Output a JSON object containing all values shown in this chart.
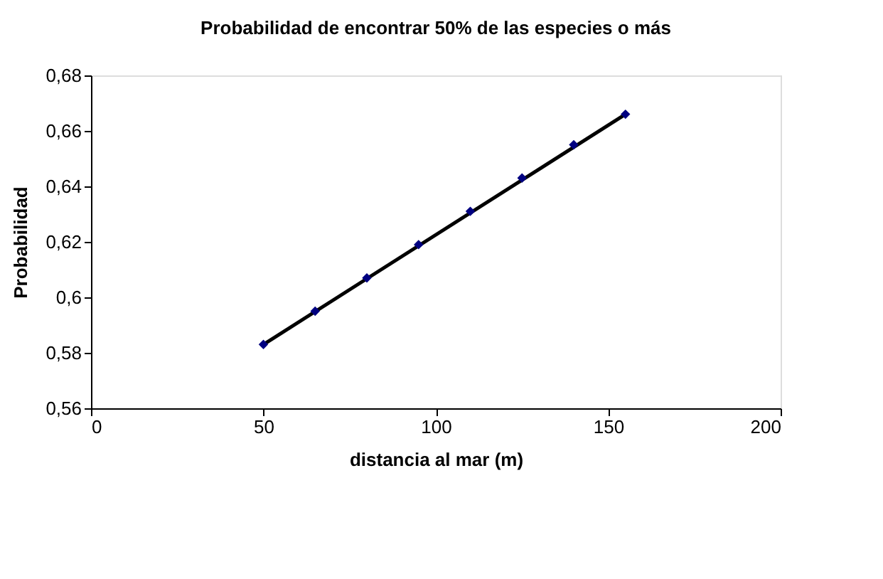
{
  "chart_data": {
    "type": "scatter",
    "title": "Probabilidad de encontrar  50% de las especies o más",
    "xlabel": "distancia al mar (m)",
    "ylabel": "Probabilidad",
    "series": [
      {
        "color": "#000080",
        "marker": "diamond",
        "x": [
          50,
          65,
          80,
          95,
          110,
          125,
          140,
          155
        ],
        "values": [
          0.583,
          0.595,
          0.607,
          0.619,
          0.631,
          0.643,
          0.655,
          0.666
        ]
      },
      {
        "type": "line",
        "color": "#000000",
        "marker": "none",
        "line_style": "solid",
        "x": [
          50,
          155
        ],
        "values": [
          0.583,
          0.666
        ]
      }
    ],
    "xlim": [
      0,
      200
    ],
    "xticks": [
      0,
      50,
      100,
      150,
      200
    ],
    "ylim": [
      0.56,
      0.68
    ],
    "yticks": [
      {
        "value": 0.56,
        "label": "0,56"
      },
      {
        "value": 0.58,
        "label": "0,58"
      },
      {
        "value": 0.6,
        "label": "0,6"
      },
      {
        "value": 0.62,
        "label": "0,62"
      },
      {
        "value": 0.64,
        "label": "0,64"
      },
      {
        "value": 0.66,
        "label": "0,66"
      },
      {
        "value": 0.68,
        "label": "0,68"
      }
    ],
    "grid": false
  }
}
